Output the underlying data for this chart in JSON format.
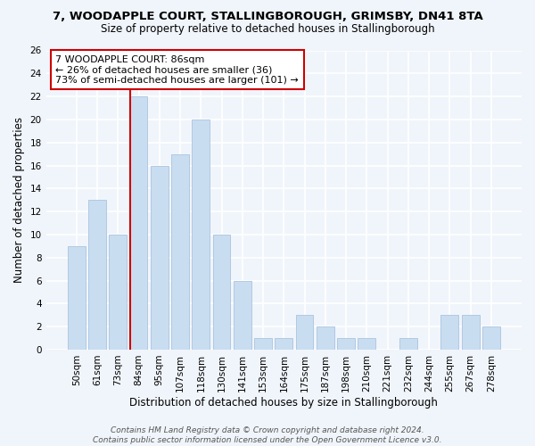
{
  "title_line1": "7, WOODAPPLE COURT, STALLINGBOROUGH, GRIMSBY, DN41 8TA",
  "title_line2": "Size of property relative to detached houses in Stallingborough",
  "xlabel": "Distribution of detached houses by size in Stallingborough",
  "ylabel": "Number of detached properties",
  "bar_labels": [
    "50sqm",
    "61sqm",
    "73sqm",
    "84sqm",
    "95sqm",
    "107sqm",
    "118sqm",
    "130sqm",
    "141sqm",
    "153sqm",
    "164sqm",
    "175sqm",
    "187sqm",
    "198sqm",
    "210sqm",
    "221sqm",
    "232sqm",
    "244sqm",
    "255sqm",
    "267sqm",
    "278sqm"
  ],
  "bar_values": [
    9,
    13,
    10,
    22,
    16,
    17,
    20,
    10,
    6,
    1,
    1,
    3,
    2,
    1,
    1,
    0,
    1,
    0,
    3,
    3,
    2
  ],
  "bar_color": "#c9ddf0",
  "bar_edge_color": "#aac4df",
  "vline_color": "#cc0000",
  "vline_x_index": 3,
  "annotation_text": "7 WOODAPPLE COURT: 86sqm\n← 26% of detached houses are smaller (36)\n73% of semi-detached houses are larger (101) →",
  "annotation_box_edgecolor": "#cc0000",
  "annotation_box_facecolor": "#ffffff",
  "ylim": [
    0,
    26
  ],
  "yticks": [
    0,
    2,
    4,
    6,
    8,
    10,
    12,
    14,
    16,
    18,
    20,
    22,
    24,
    26
  ],
  "footer_line1": "Contains HM Land Registry data © Crown copyright and database right 2024.",
  "footer_line2": "Contains public sector information licensed under the Open Government Licence v3.0.",
  "background_color": "#f0f5fb",
  "grid_color": "#ffffff",
  "title_fontsize": 9.5,
  "subtitle_fontsize": 8.5,
  "axis_label_fontsize": 8.5,
  "tick_fontsize": 7.5,
  "annotation_fontsize": 8,
  "footer_fontsize": 6.5
}
